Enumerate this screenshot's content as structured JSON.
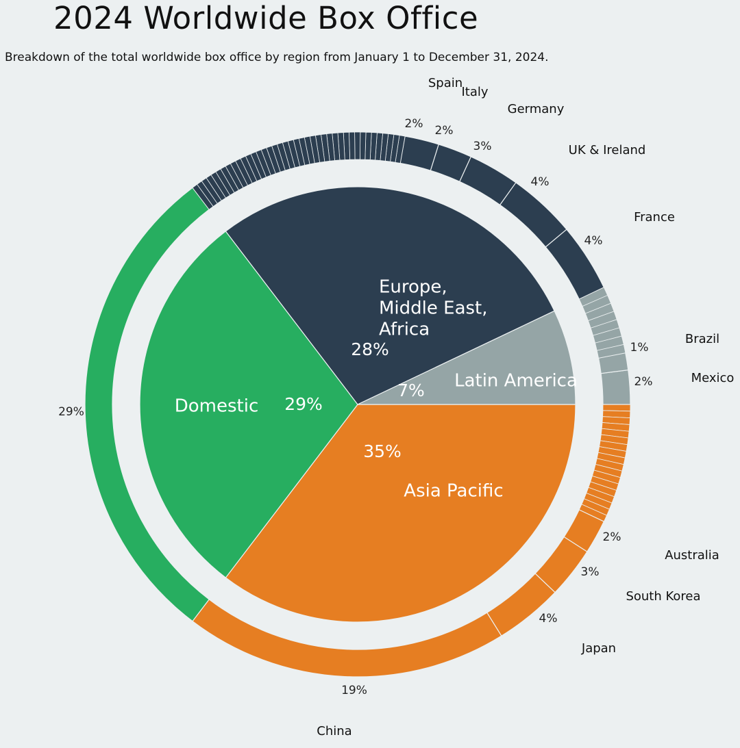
{
  "chart_data": {
    "type": "pie",
    "title": "2024 Worldwide Box Office",
    "subtitle": "Breakdown of the total worldwide box office by region from January 1 to December 31, 2024.",
    "colors": {
      "Domestic": "#27ae60",
      "Europe, Middle East, Africa": "#2c3e50",
      "Latin America": "#95a5a6",
      "Asia Pacific": "#e67e22",
      "background": "#ecf0f1"
    },
    "regions": [
      {
        "name": "Asia Pacific",
        "label_lines": [
          "Asia Pacific"
        ],
        "value": 35,
        "pct_label": "35%"
      },
      {
        "name": "Domestic",
        "label_lines": [
          "Domestic"
        ],
        "value": 29,
        "pct_label": "29%"
      },
      {
        "name": "Europe, Middle East, Africa",
        "label_lines": [
          "Europe,",
          "Middle East,",
          "Africa"
        ],
        "value": 28,
        "pct_label": "28%"
      },
      {
        "name": "Latin America",
        "label_lines": [
          "Latin America"
        ],
        "value": 7,
        "pct_label": "7%"
      }
    ],
    "countries": [
      {
        "region": "Asia Pacific",
        "name": "China",
        "value": 19,
        "pct_label": "19%"
      },
      {
        "region": "Asia Pacific",
        "name": "Japan",
        "value": 4,
        "pct_label": "4%"
      },
      {
        "region": "Asia Pacific",
        "name": "South Korea",
        "value": 3,
        "pct_label": "3%"
      },
      {
        "region": "Asia Pacific",
        "name": "Australia",
        "value": 2,
        "pct_label": "2%"
      },
      {
        "region": "Domestic",
        "name": "",
        "value": 29,
        "pct_label": "29%"
      },
      {
        "region": "Europe, Middle East, Africa",
        "name": "Spain",
        "value": 2,
        "pct_label": "2%"
      },
      {
        "region": "Europe, Middle East, Africa",
        "name": "Italy",
        "value": 2,
        "pct_label": "2%"
      },
      {
        "region": "Europe, Middle East, Africa",
        "name": "Germany",
        "value": 3,
        "pct_label": "3%"
      },
      {
        "region": "Europe, Middle East, Africa",
        "name": "UK & Ireland",
        "value": 4,
        "pct_label": "4%"
      },
      {
        "region": "Europe, Middle East, Africa",
        "name": "France",
        "value": 4,
        "pct_label": "4%"
      },
      {
        "region": "Latin America",
        "name": "Brazil",
        "value": 1,
        "pct_label": "1%"
      },
      {
        "region": "Latin America",
        "name": "Mexico",
        "value": 2,
        "pct_label": "2%"
      }
    ],
    "other_countries": {
      "Asia Pacific": {
        "count": 18,
        "total": 7
      },
      "Europe, Middle East, Africa": {
        "count": 40,
        "total": 13
      },
      "Latin America": {
        "count": 8,
        "total": 4
      }
    }
  }
}
